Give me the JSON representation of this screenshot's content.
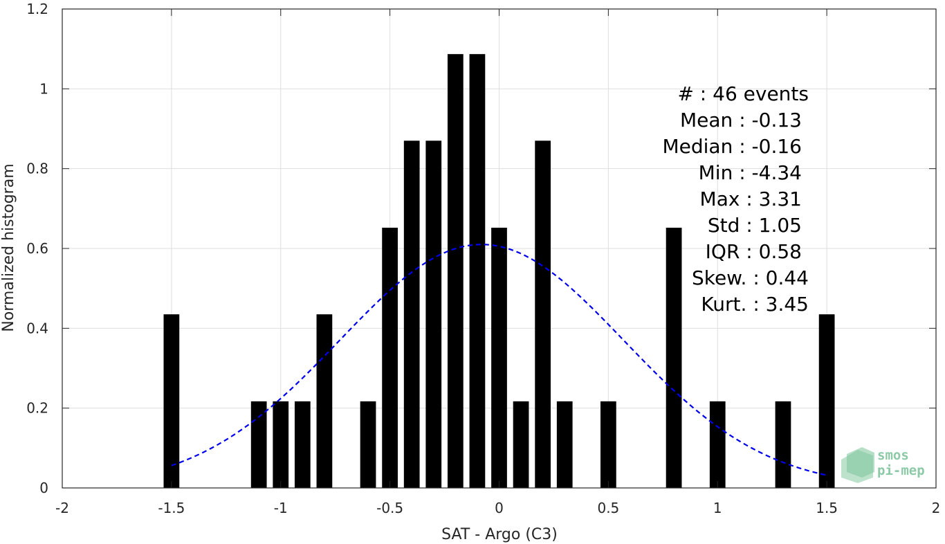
{
  "chart_data": {
    "type": "bar",
    "xlabel": "SAT - Argo (C3)",
    "ylabel": "Normalized histogram",
    "xlim": [
      -2,
      2
    ],
    "ylim": [
      0,
      1.2
    ],
    "x_ticks": [
      -2,
      -1.5,
      -1,
      -0.5,
      0,
      0.5,
      1,
      1.5,
      2
    ],
    "x_tick_labels": [
      "-2",
      "-1.5",
      "-1",
      "-0.5",
      "0",
      "0.5",
      "1",
      "1.5",
      "2"
    ],
    "y_ticks": [
      0,
      0.2,
      0.4,
      0.6,
      0.8,
      1,
      1.2
    ],
    "y_tick_labels": [
      "0",
      "0.2",
      "0.4",
      "0.6",
      "0.8",
      "1",
      "1.2"
    ],
    "grid": true,
    "bar_color": "#000000",
    "bars": {
      "x": [
        -1.5,
        -1.1,
        -1.0,
        -0.9,
        -0.8,
        -0.6,
        -0.5,
        -0.4,
        -0.3,
        -0.2,
        -0.1,
        0.0,
        0.1,
        0.2,
        0.3,
        0.5,
        0.8,
        1.0,
        1.3,
        1.5
      ],
      "values": [
        0.435,
        0.217,
        0.217,
        0.217,
        0.435,
        0.217,
        0.652,
        0.87,
        0.87,
        1.087,
        1.087,
        0.652,
        0.217,
        0.87,
        0.217,
        0.217,
        0.652,
        0.217,
        0.217,
        0.435
      ]
    },
    "fit_curve": {
      "name": "",
      "type": "gaussian",
      "mean": -0.08,
      "sigma": 0.65,
      "peak": 0.61,
      "x_range": [
        -1.5,
        1.5
      ],
      "color": "#0000ee",
      "style": "dashed"
    },
    "annotations": [
      "#  : 46 events",
      "Mean : -0.13",
      "Median : -0.16",
      "Min : -4.34",
      "Max : 3.31",
      "Std : 1.05",
      "IQR : 0.58",
      "Skew. : 0.44",
      "Kurt. : 3.45"
    ]
  },
  "logo": {
    "line1": "smos",
    "line2": "pi-mep"
  }
}
